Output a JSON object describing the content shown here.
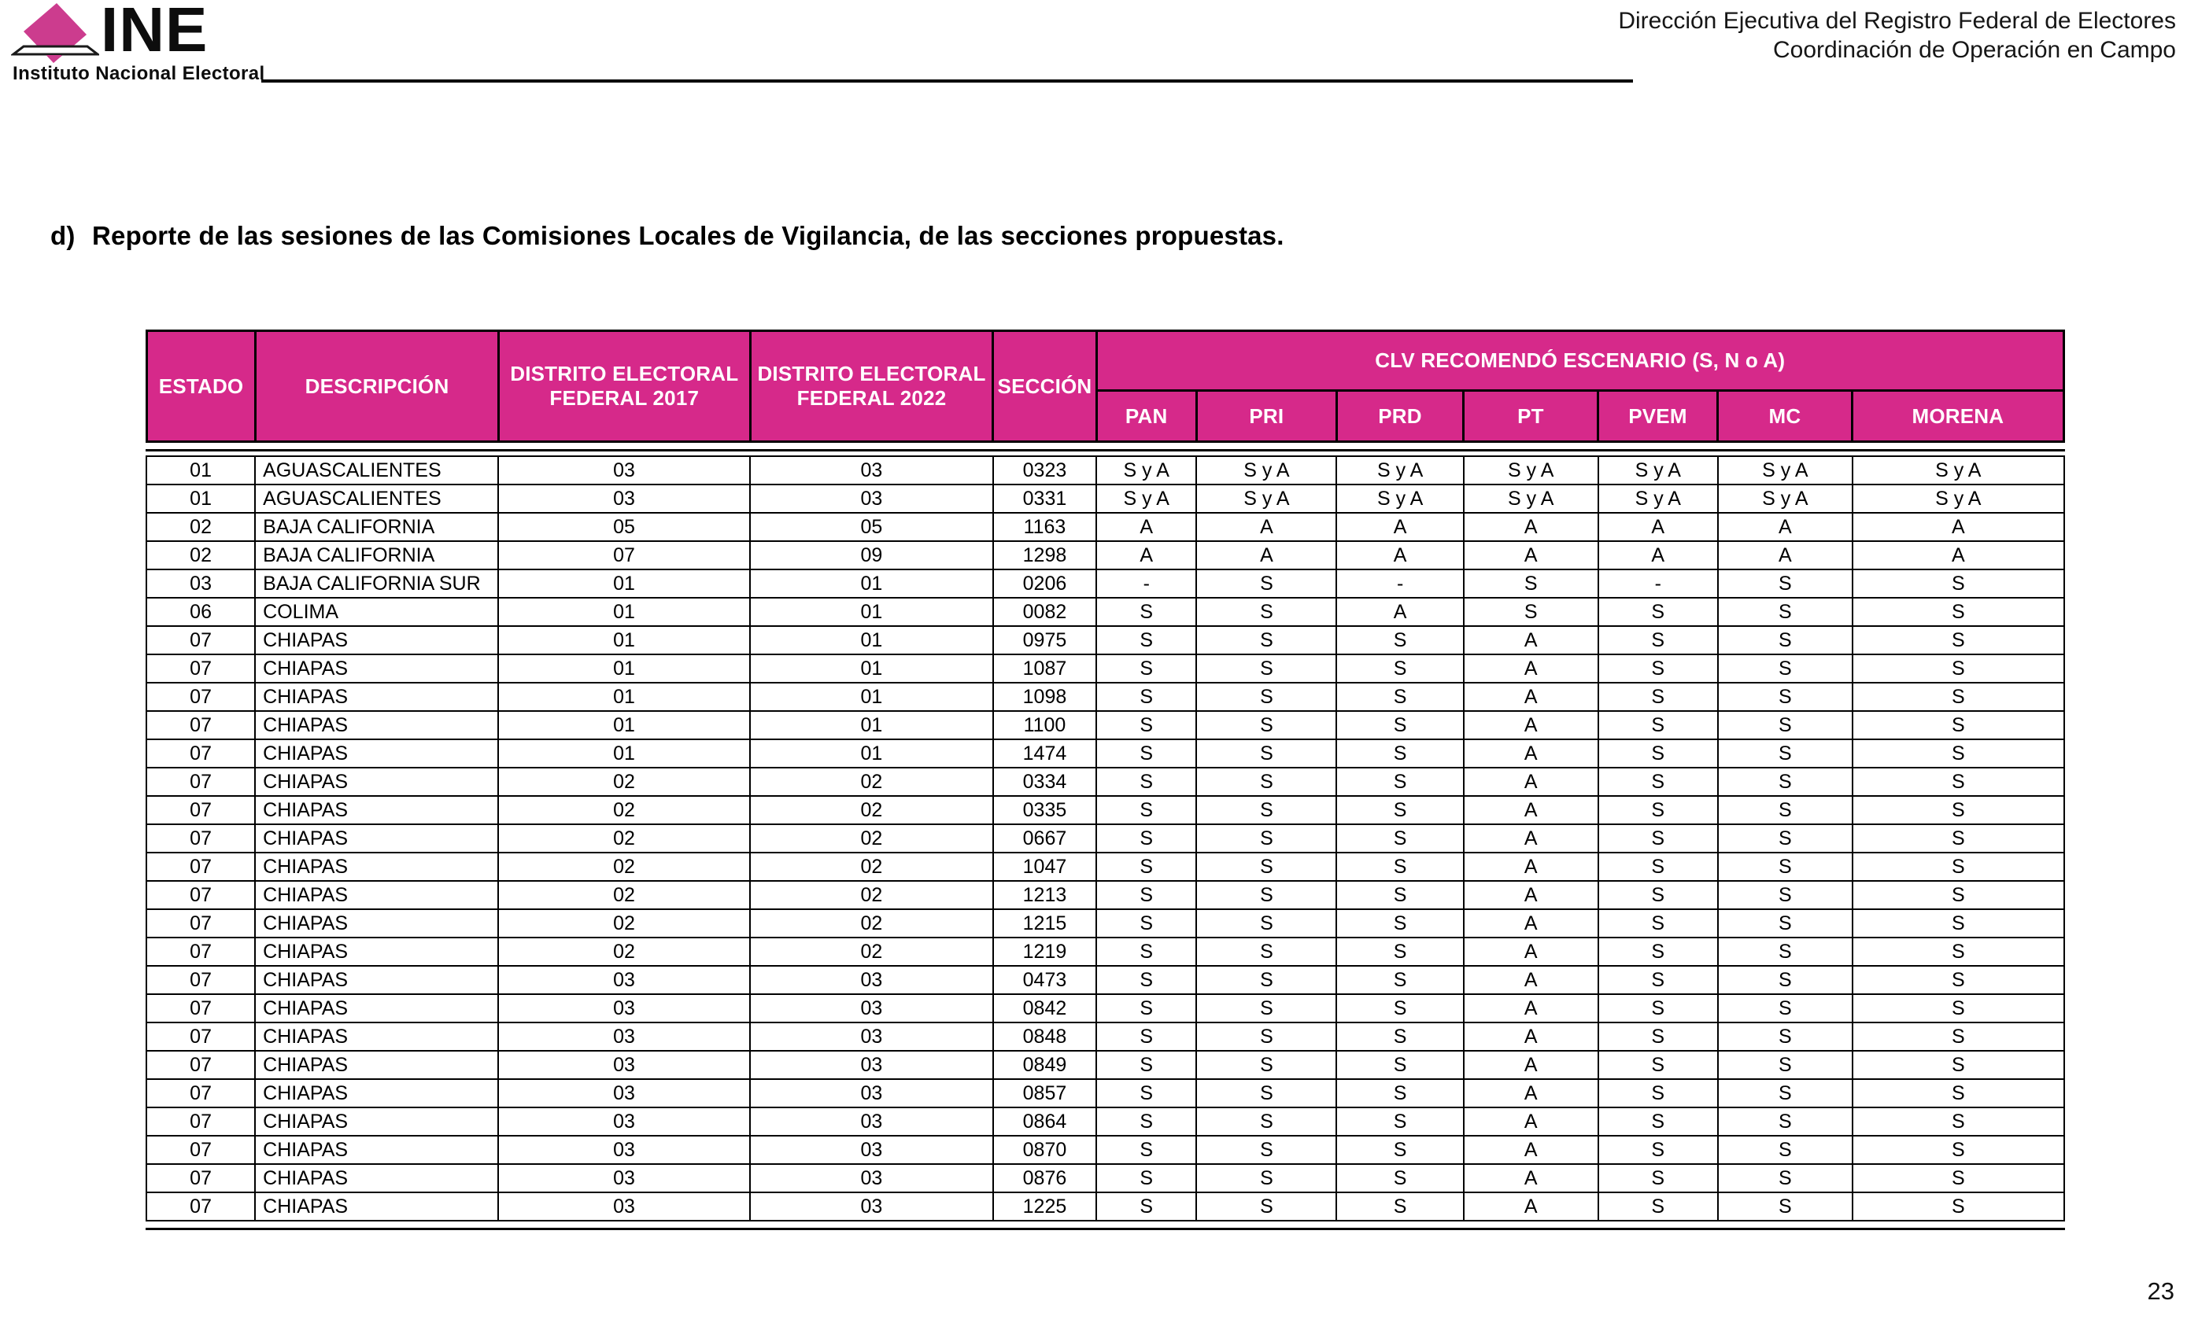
{
  "colors": {
    "accent_pink": "#D6298A",
    "logo_pink": "#CC3C8E",
    "border_black": "#000000"
  },
  "icons": {
    "logo": "ine-ballot-box-icon"
  },
  "logo": {
    "acronym": "INE",
    "name": "Instituto Nacional Electoral"
  },
  "letterhead": {
    "line1": "Dirección Ejecutiva del Registro Federal de Electores",
    "line2": "Coordinación de Operación en Campo"
  },
  "section_title": {
    "prefix": "d)",
    "text": "Reporte de las sesiones de las Comisiones Locales de Vigilancia, de las secciones propuestas."
  },
  "table": {
    "headers": [
      "ESTADO",
      "DESCRIPCIÓN",
      "DISTRITO ELECTORAL FEDERAL 2017",
      "DISTRITO ELECTORAL FEDERAL 2022",
      "SECCIÓN"
    ],
    "group_header": "CLV RECOMENDÓ ESCENARIO (S, N o A)",
    "party_headers": [
      "PAN",
      "PRI",
      "PRD",
      "PT",
      "PVEM",
      "MC",
      "MORENA"
    ],
    "rows": [
      [
        "01",
        "AGUASCALIENTES",
        "03",
        "03",
        "0323",
        "S y A",
        "S y A",
        "S y A",
        "S y A",
        "S y A",
        "S y A",
        "S y A"
      ],
      [
        "01",
        "AGUASCALIENTES",
        "03",
        "03",
        "0331",
        "S y A",
        "S y A",
        "S y A",
        "S y A",
        "S y A",
        "S y A",
        "S y A"
      ],
      [
        "02",
        "BAJA CALIFORNIA",
        "05",
        "05",
        "1163",
        "A",
        "A",
        "A",
        "A",
        "A",
        "A",
        "A"
      ],
      [
        "02",
        "BAJA CALIFORNIA",
        "07",
        "09",
        "1298",
        "A",
        "A",
        "A",
        "A",
        "A",
        "A",
        "A"
      ],
      [
        "03",
        "BAJA CALIFORNIA SUR",
        "01",
        "01",
        "0206",
        "-",
        "S",
        "-",
        "S",
        "-",
        "S",
        "S"
      ],
      [
        "06",
        "COLIMA",
        "01",
        "01",
        "0082",
        "S",
        "S",
        "A",
        "S",
        "S",
        "S",
        "S"
      ],
      [
        "07",
        "CHIAPAS",
        "01",
        "01",
        "0975",
        "S",
        "S",
        "S",
        "A",
        "S",
        "S",
        "S"
      ],
      [
        "07",
        "CHIAPAS",
        "01",
        "01",
        "1087",
        "S",
        "S",
        "S",
        "A",
        "S",
        "S",
        "S"
      ],
      [
        "07",
        "CHIAPAS",
        "01",
        "01",
        "1098",
        "S",
        "S",
        "S",
        "A",
        "S",
        "S",
        "S"
      ],
      [
        "07",
        "CHIAPAS",
        "01",
        "01",
        "1100",
        "S",
        "S",
        "S",
        "A",
        "S",
        "S",
        "S"
      ],
      [
        "07",
        "CHIAPAS",
        "01",
        "01",
        "1474",
        "S",
        "S",
        "S",
        "A",
        "S",
        "S",
        "S"
      ],
      [
        "07",
        "CHIAPAS",
        "02",
        "02",
        "0334",
        "S",
        "S",
        "S",
        "A",
        "S",
        "S",
        "S"
      ],
      [
        "07",
        "CHIAPAS",
        "02",
        "02",
        "0335",
        "S",
        "S",
        "S",
        "A",
        "S",
        "S",
        "S"
      ],
      [
        "07",
        "CHIAPAS",
        "02",
        "02",
        "0667",
        "S",
        "S",
        "S",
        "A",
        "S",
        "S",
        "S"
      ],
      [
        "07",
        "CHIAPAS",
        "02",
        "02",
        "1047",
        "S",
        "S",
        "S",
        "A",
        "S",
        "S",
        "S"
      ],
      [
        "07",
        "CHIAPAS",
        "02",
        "02",
        "1213",
        "S",
        "S",
        "S",
        "A",
        "S",
        "S",
        "S"
      ],
      [
        "07",
        "CHIAPAS",
        "02",
        "02",
        "1215",
        "S",
        "S",
        "S",
        "A",
        "S",
        "S",
        "S"
      ],
      [
        "07",
        "CHIAPAS",
        "02",
        "02",
        "1219",
        "S",
        "S",
        "S",
        "A",
        "S",
        "S",
        "S"
      ],
      [
        "07",
        "CHIAPAS",
        "03",
        "03",
        "0473",
        "S",
        "S",
        "S",
        "A",
        "S",
        "S",
        "S"
      ],
      [
        "07",
        "CHIAPAS",
        "03",
        "03",
        "0842",
        "S",
        "S",
        "S",
        "A",
        "S",
        "S",
        "S"
      ],
      [
        "07",
        "CHIAPAS",
        "03",
        "03",
        "0848",
        "S",
        "S",
        "S",
        "A",
        "S",
        "S",
        "S"
      ],
      [
        "07",
        "CHIAPAS",
        "03",
        "03",
        "0849",
        "S",
        "S",
        "S",
        "A",
        "S",
        "S",
        "S"
      ],
      [
        "07",
        "CHIAPAS",
        "03",
        "03",
        "0857",
        "S",
        "S",
        "S",
        "A",
        "S",
        "S",
        "S"
      ],
      [
        "07",
        "CHIAPAS",
        "03",
        "03",
        "0864",
        "S",
        "S",
        "S",
        "A",
        "S",
        "S",
        "S"
      ],
      [
        "07",
        "CHIAPAS",
        "03",
        "03",
        "0870",
        "S",
        "S",
        "S",
        "A",
        "S",
        "S",
        "S"
      ],
      [
        "07",
        "CHIAPAS",
        "03",
        "03",
        "0876",
        "S",
        "S",
        "S",
        "A",
        "S",
        "S",
        "S"
      ],
      [
        "07",
        "CHIAPAS",
        "03",
        "03",
        "1225",
        "S",
        "S",
        "S",
        "A",
        "S",
        "S",
        "S"
      ]
    ]
  },
  "page_number": "23"
}
